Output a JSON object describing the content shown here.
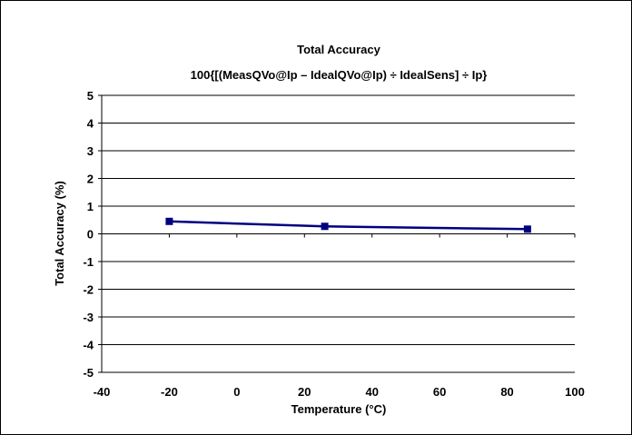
{
  "chart_data": {
    "type": "line",
    "title": "Total Accuracy",
    "subtitle": "100{[(MeasQVo@Ip – IdealQVo@Ip) ÷ IdealSens] ÷ Ip}",
    "xlabel": "Temperature (°C)",
    "ylabel": "Total Accuracy (%)",
    "xlim": [
      -40,
      100
    ],
    "ylim": [
      -5,
      5
    ],
    "xticks": [
      -40,
      -20,
      0,
      20,
      40,
      60,
      80,
      100
    ],
    "yticks": [
      -5,
      -4,
      -3,
      -2,
      -1,
      0,
      1,
      2,
      3,
      4,
      5
    ],
    "grid": "horizontal",
    "legend": "none",
    "series": [
      {
        "color": "#000080",
        "marker": "square",
        "x": [
          -20,
          26,
          86
        ],
        "y": [
          0.45,
          0.27,
          0.17
        ]
      }
    ]
  }
}
